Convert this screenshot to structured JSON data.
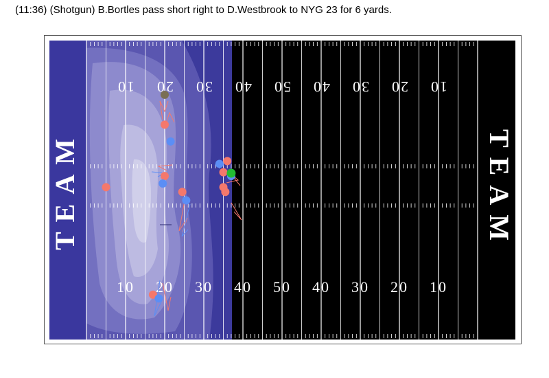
{
  "play": {
    "description": "(11:36) (Shotgun) B.Bortles pass short right to D.Westbrook to NYG 23 for 6 yards."
  },
  "field": {
    "endzone_left_label": "TEAM",
    "endzone_right_label": "TEAM",
    "yard_numbers_bottom": [
      "10",
      "20",
      "30",
      "40",
      "50",
      "40",
      "30",
      "20",
      "10"
    ],
    "yard_numbers_top": [
      "10",
      "20",
      "30",
      "40",
      "50",
      "40",
      "30",
      "20",
      "10"
    ],
    "colors": {
      "field": "#000000",
      "density_base": "#3c3a9c",
      "offense": "#f4786c",
      "defense": "#5b8ef5",
      "ball": "#22bb33",
      "official": "#7a6f55"
    }
  },
  "players": {
    "offense": [
      {
        "yardline": 20,
        "lateral": 45.0
      },
      {
        "yardline": 20,
        "lateral": 72.5
      },
      {
        "yardline": 5,
        "lateral": 78.5
      },
      {
        "yardline": 24.5,
        "lateral": 81.0
      },
      {
        "yardline": 36,
        "lateral": 64.5
      },
      {
        "yardline": 35,
        "lateral": 70.5
      },
      {
        "yardline": 35,
        "lateral": 78.5
      },
      {
        "yardline": 35.5,
        "lateral": 81.0
      },
      {
        "yardline": 17,
        "lateral": 136.0
      }
    ],
    "defense": [
      {
        "yardline": 21.5,
        "lateral": 54.0
      },
      {
        "yardline": 19.5,
        "lateral": 76.5
      },
      {
        "yardline": 25.5,
        "lateral": 85.5
      },
      {
        "yardline": 34,
        "lateral": 66.0
      },
      {
        "yardline": 37,
        "lateral": 72.5
      },
      {
        "yardline": 18.5,
        "lateral": 138.0
      }
    ],
    "ball": {
      "yardline": 37,
      "lateral": 71.0
    },
    "official": {
      "yardline": 20,
      "lateral": 29.0
    }
  }
}
